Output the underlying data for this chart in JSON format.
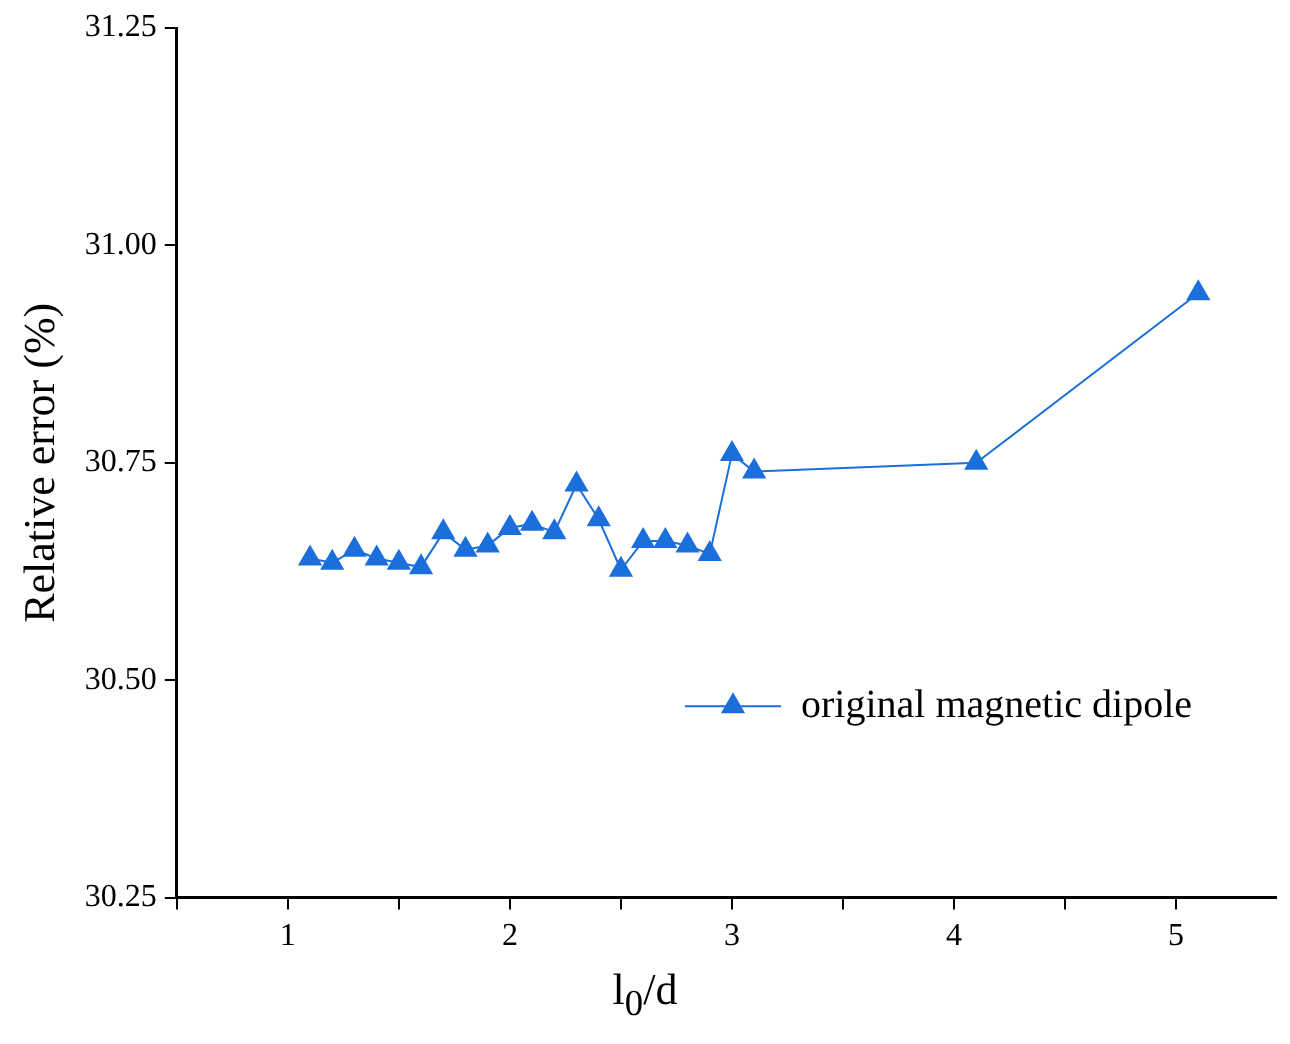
{
  "chart_data": {
    "type": "line",
    "xlabel": "l$_{0}$/d",
    "ylabel": "Relative error (%)",
    "xlim": [
      0.5,
      5.45
    ],
    "xticks": [
      {
        "value": 0.5,
        "label": null
      },
      1,
      {
        "value": 1.5,
        "label": null
      },
      2,
      {
        "value": 2.5,
        "label": null
      },
      3,
      {
        "value": 3.5,
        "label": null
      },
      4,
      {
        "value": 4.5,
        "label": null
      },
      5
    ],
    "ylim": [
      30.25,
      31.25
    ],
    "yticks": [
      30.25,
      {
        "value": 30.5,
        "label": "30.50"
      },
      {
        "value": 30.75,
        "label": "30.75"
      },
      {
        "value": 31.0,
        "label": "31.00"
      },
      31.25
    ],
    "grid": false,
    "legend": "bottom right",
    "marker": "triangle",
    "line_style": "solid",
    "series": [
      {
        "name": "original magnetic dipole",
        "color": "#1a6fdb",
        "x": [
          1.1,
          1.2,
          1.3,
          1.4,
          1.5,
          1.6,
          1.7,
          1.8,
          1.9,
          2.0,
          2.1,
          2.2,
          2.3,
          2.4,
          2.5,
          2.6,
          2.7,
          2.8,
          2.9,
          3.0,
          3.1,
          4.1,
          5.1
        ],
        "values": [
          30.64,
          30.635,
          30.65,
          30.64,
          30.635,
          30.63,
          30.67,
          30.65,
          30.655,
          30.675,
          30.68,
          30.67,
          30.725,
          30.685,
          30.627,
          30.66,
          30.66,
          30.655,
          30.645,
          30.76,
          30.74,
          30.75,
          30.945
        ]
      }
    ]
  }
}
